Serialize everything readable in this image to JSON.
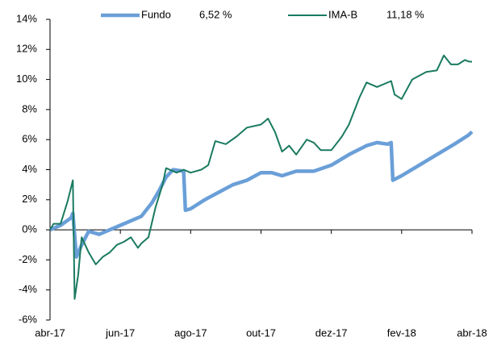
{
  "chart_data": {
    "type": "line",
    "series": [
      {
        "name": "Fundo",
        "legend_value": "6,52 %",
        "color": "#6a9fd8",
        "width": 4.5,
        "x": [
          0,
          0.3,
          0.6,
          0.65,
          0.75,
          0.9,
          1.1,
          1.4,
          1.7,
          2.0,
          2.3,
          2.6,
          2.9,
          3.1,
          3.3,
          3.5,
          3.8,
          3.85,
          4.0,
          4.4,
          4.8,
          5.2,
          5.6,
          6.0,
          6.3,
          6.6,
          7.0,
          7.5,
          8.0,
          8.5,
          9.0,
          9.3,
          9.6,
          9.7,
          9.75,
          10.0,
          10.5,
          11.0,
          11.5,
          11.9,
          12.0
        ],
        "values": [
          0,
          0.3,
          0.8,
          1.1,
          -1.8,
          -1.0,
          -0.1,
          -0.3,
          0,
          0.3,
          0.6,
          0.9,
          1.8,
          2.6,
          3.5,
          4.0,
          3.9,
          1.3,
          1.4,
          2.0,
          2.5,
          3.0,
          3.3,
          3.8,
          3.8,
          3.6,
          3.9,
          3.9,
          4.3,
          5.0,
          5.6,
          5.8,
          5.7,
          5.8,
          3.3,
          3.6,
          4.3,
          5.0,
          5.7,
          6.3,
          6.52
        ]
      },
      {
        "name": "IMA-B",
        "legend_value": "11,18 %",
        "color": "#1a7a60",
        "width": 2,
        "x": [
          0,
          0.1,
          0.3,
          0.5,
          0.65,
          0.7,
          0.8,
          0.9,
          1.1,
          1.3,
          1.5,
          1.7,
          1.9,
          2.1,
          2.3,
          2.5,
          2.6,
          2.8,
          3.0,
          3.2,
          3.3,
          3.6,
          3.8,
          4.0,
          4.3,
          4.5,
          4.7,
          5.0,
          5.3,
          5.6,
          6.0,
          6.2,
          6.4,
          6.6,
          6.8,
          7.0,
          7.3,
          7.5,
          7.7,
          8.0,
          8.3,
          8.5,
          8.8,
          9.0,
          9.3,
          9.7,
          9.8,
          10.0,
          10.3,
          10.7,
          11.0,
          11.2,
          11.4,
          11.6,
          11.8,
          11.9,
          12.0
        ],
        "values": [
          0,
          0.4,
          0.4,
          1.9,
          3.3,
          -4.6,
          -3.0,
          -0.5,
          -1.5,
          -2.3,
          -1.8,
          -1.5,
          -1.0,
          -0.8,
          -0.5,
          -1.2,
          -0.9,
          -0.5,
          1.5,
          3.0,
          4.1,
          3.8,
          4.0,
          3.8,
          4.0,
          4.3,
          5.9,
          5.7,
          6.2,
          6.8,
          7.0,
          7.4,
          6.5,
          5.2,
          5.6,
          5.0,
          6.0,
          5.8,
          5.3,
          5.3,
          6.2,
          7.0,
          8.8,
          9.8,
          9.5,
          9.9,
          9.0,
          8.7,
          10.0,
          10.5,
          10.6,
          11.6,
          11.0,
          11.0,
          11.3,
          11.2,
          11.18
        ]
      }
    ],
    "xlim": [
      0,
      12
    ],
    "xticks": [
      {
        "value": 0,
        "label": "abr-17"
      },
      {
        "value": 2,
        "label": "jun-17"
      },
      {
        "value": 4,
        "label": "ago-17"
      },
      {
        "value": 6,
        "label": "out-17"
      },
      {
        "value": 8,
        "label": "dez-17"
      },
      {
        "value": 10,
        "label": "fev-18"
      },
      {
        "value": 12,
        "label": "abr-18"
      }
    ],
    "ylim": [
      -6,
      14
    ],
    "yticks": [
      {
        "value": -6,
        "label": "-6%"
      },
      {
        "value": -4,
        "label": "-4%"
      },
      {
        "value": -2,
        "label": "-2%"
      },
      {
        "value": 0,
        "label": "0%"
      },
      {
        "value": 2,
        "label": "2%"
      },
      {
        "value": 4,
        "label": "4%"
      },
      {
        "value": 6,
        "label": "6%"
      },
      {
        "value": 8,
        "label": "8%"
      },
      {
        "value": 10,
        "label": "10%"
      },
      {
        "value": 12,
        "label": "12%"
      },
      {
        "value": 14,
        "label": "14%"
      }
    ]
  }
}
